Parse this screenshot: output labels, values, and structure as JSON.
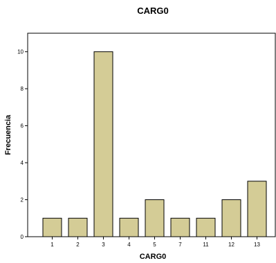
{
  "chart_data": {
    "type": "bar",
    "title": "CARG0",
    "xlabel": "CARG0",
    "ylabel": "Frecuencia",
    "categories": [
      "1",
      "2",
      "3",
      "4",
      "5",
      "7",
      "11",
      "12",
      "13"
    ],
    "values": [
      1,
      1,
      10,
      1,
      2,
      1,
      1,
      2,
      3
    ],
    "ylim": [
      0,
      11
    ],
    "yticks": [
      0,
      2,
      4,
      6,
      8,
      10
    ],
    "grid": false,
    "colors": {
      "bar": "#d4cc96",
      "stroke": "#000000"
    }
  }
}
